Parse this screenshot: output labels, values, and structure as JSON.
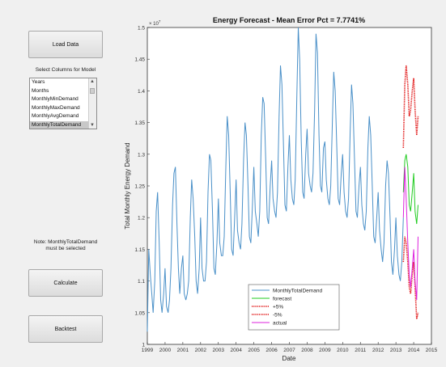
{
  "controls": {
    "load_label": "Load Data",
    "select_label": "Select Columns for Model",
    "columns": [
      "Years",
      "Months",
      "MonthlyMinDemand",
      "MonthlyMaxDemand",
      "MonthlyAvgDemand",
      "MonthlyTotalDemand"
    ],
    "selected_column": "MonthlyTotalDemand",
    "note_line1": "Note: MonthlyTotalDemand",
    "note_line2": "must be selected",
    "calculate_label": "Calculate",
    "backtest_label": "Backtest"
  },
  "chart_data": {
    "type": "line",
    "title": "Energy Forecast - Mean Error Pct = 7.7741%",
    "xlabel": "Date",
    "ylabel": "Total Monthly Energy Demand",
    "y_exponent_label": "× 10",
    "y_exponent_power": "7",
    "xlim": [
      1999,
      2015
    ],
    "ylim": [
      1.0,
      1.5
    ],
    "x_ticks": [
      "1999",
      "2000",
      "2001",
      "2002",
      "2003",
      "2004",
      "2005",
      "2006",
      "2007",
      "2008",
      "2009",
      "2010",
      "2011",
      "2012",
      "2013",
      "2014",
      "2015"
    ],
    "y_ticks": [
      "1",
      "1.05",
      "1.1",
      "1.15",
      "1.2",
      "1.25",
      "1.3",
      "1.35",
      "1.4",
      "1.45",
      "1.5"
    ],
    "legend_position": "bottom-center",
    "series": [
      {
        "name": "MonthlyTotalDemand",
        "color": "#4a90c8",
        "style": "solid",
        "x": [
          1999.0,
          1999.08,
          1999.17,
          1999.25,
          1999.33,
          1999.42,
          1999.5,
          1999.58,
          1999.67,
          1999.75,
          1999.83,
          1999.92,
          2000.0,
          2000.08,
          2000.17,
          2000.25,
          2000.33,
          2000.42,
          2000.5,
          2000.58,
          2000.67,
          2000.75,
          2000.83,
          2000.92,
          2001.0,
          2001.08,
          2001.17,
          2001.25,
          2001.33,
          2001.42,
          2001.5,
          2001.58,
          2001.67,
          2001.75,
          2001.83,
          2001.92,
          2002.0,
          2002.08,
          2002.17,
          2002.25,
          2002.33,
          2002.42,
          2002.5,
          2002.58,
          2002.67,
          2002.75,
          2002.83,
          2002.92,
          2003.0,
          2003.08,
          2003.17,
          2003.25,
          2003.33,
          2003.42,
          2003.5,
          2003.58,
          2003.67,
          2003.75,
          2003.83,
          2003.92,
          2004.0,
          2004.08,
          2004.17,
          2004.25,
          2004.33,
          2004.42,
          2004.5,
          2004.58,
          2004.67,
          2004.75,
          2004.83,
          2004.92,
          2005.0,
          2005.08,
          2005.17,
          2005.25,
          2005.33,
          2005.42,
          2005.5,
          2005.58,
          2005.67,
          2005.75,
          2005.83,
          2005.92,
          2006.0,
          2006.08,
          2006.17,
          2006.25,
          2006.33,
          2006.42,
          2006.5,
          2006.58,
          2006.67,
          2006.75,
          2006.83,
          2006.92,
          2007.0,
          2007.08,
          2007.17,
          2007.25,
          2007.33,
          2007.42,
          2007.5,
          2007.58,
          2007.67,
          2007.75,
          2007.83,
          2007.92,
          2008.0,
          2008.08,
          2008.17,
          2008.25,
          2008.33,
          2008.42,
          2008.5,
          2008.58,
          2008.67,
          2008.75,
          2008.83,
          2008.92,
          2009.0,
          2009.08,
          2009.17,
          2009.25,
          2009.33,
          2009.42,
          2009.5,
          2009.58,
          2009.67,
          2009.75,
          2009.83,
          2009.92,
          2010.0,
          2010.08,
          2010.17,
          2010.25,
          2010.33,
          2010.42,
          2010.5,
          2010.58,
          2010.67,
          2010.75,
          2010.83,
          2010.92,
          2011.0,
          2011.08,
          2011.17,
          2011.25,
          2011.33,
          2011.42,
          2011.5,
          2011.58,
          2011.67,
          2011.75,
          2011.83,
          2011.92,
          2012.0,
          2012.08,
          2012.17,
          2012.25,
          2012.33,
          2012.42,
          2012.5,
          2012.58,
          2012.67,
          2012.75,
          2012.83,
          2012.92,
          2013.0,
          2013.08,
          2013.17,
          2013.25,
          2013.33,
          2013.42
        ],
        "y": [
          1.02,
          1.15,
          1.11,
          1.08,
          1.05,
          1.1,
          1.21,
          1.24,
          1.16,
          1.07,
          1.05,
          1.08,
          1.12,
          1.06,
          1.05,
          1.07,
          1.12,
          1.22,
          1.27,
          1.28,
          1.19,
          1.12,
          1.08,
          1.12,
          1.14,
          1.08,
          1.07,
          1.08,
          1.1,
          1.2,
          1.26,
          1.23,
          1.17,
          1.1,
          1.08,
          1.12,
          1.2,
          1.12,
          1.1,
          1.1,
          1.13,
          1.24,
          1.3,
          1.29,
          1.21,
          1.12,
          1.11,
          1.16,
          1.23,
          1.16,
          1.14,
          1.14,
          1.17,
          1.28,
          1.36,
          1.33,
          1.24,
          1.15,
          1.14,
          1.2,
          1.26,
          1.18,
          1.16,
          1.15,
          1.19,
          1.29,
          1.35,
          1.33,
          1.25,
          1.17,
          1.16,
          1.22,
          1.28,
          1.21,
          1.19,
          1.17,
          1.21,
          1.33,
          1.39,
          1.38,
          1.29,
          1.2,
          1.19,
          1.25,
          1.29,
          1.23,
          1.21,
          1.2,
          1.24,
          1.36,
          1.44,
          1.41,
          1.31,
          1.22,
          1.21,
          1.28,
          1.33,
          1.26,
          1.23,
          1.22,
          1.26,
          1.39,
          1.5,
          1.45,
          1.32,
          1.24,
          1.23,
          1.3,
          1.34,
          1.27,
          1.25,
          1.24,
          1.27,
          1.37,
          1.49,
          1.46,
          1.33,
          1.25,
          1.24,
          1.31,
          1.32,
          1.26,
          1.23,
          1.22,
          1.25,
          1.35,
          1.43,
          1.4,
          1.31,
          1.23,
          1.22,
          1.27,
          1.3,
          1.24,
          1.21,
          1.2,
          1.23,
          1.33,
          1.41,
          1.38,
          1.29,
          1.21,
          1.2,
          1.25,
          1.28,
          1.22,
          1.19,
          1.18,
          1.21,
          1.31,
          1.36,
          1.33,
          1.25,
          1.17,
          1.16,
          1.2,
          1.24,
          1.18,
          1.15,
          1.13,
          1.16,
          1.25,
          1.29,
          1.27,
          1.2,
          1.13,
          1.11,
          1.15,
          1.2,
          1.14,
          1.11,
          1.1,
          1.13,
          1.2
        ]
      },
      {
        "name": "forecast",
        "color": "#22cc22",
        "style": "solid",
        "x": [
          2013.42,
          2013.5,
          2013.58,
          2013.67,
          2013.75,
          2013.83,
          2013.92,
          2014.0,
          2014.08,
          2014.17,
          2014.25
        ],
        "y": [
          1.24,
          1.29,
          1.3,
          1.28,
          1.22,
          1.21,
          1.24,
          1.27,
          1.21,
          1.19,
          1.22
        ]
      },
      {
        "name": "+5%",
        "color": "#e01010",
        "style": "dotted",
        "x": [
          2013.42,
          2013.5,
          2013.58,
          2013.67,
          2013.75,
          2013.83,
          2013.92,
          2014.0,
          2014.08,
          2014.17,
          2014.25
        ],
        "y": [
          1.31,
          1.41,
          1.44,
          1.41,
          1.36,
          1.37,
          1.4,
          1.42,
          1.37,
          1.33,
          1.36
        ]
      },
      {
        "name": "-5%",
        "color": "#e01010",
        "style": "dotted",
        "x": [
          2013.42,
          2013.5,
          2013.58,
          2013.67,
          2013.75,
          2013.83,
          2013.92,
          2014.0,
          2014.08,
          2014.17,
          2014.25
        ],
        "y": [
          1.13,
          1.17,
          1.16,
          1.13,
          1.09,
          1.08,
          1.11,
          1.13,
          1.09,
          1.04,
          1.05
        ]
      },
      {
        "name": "actual",
        "color": "#dd22dd",
        "style": "solid",
        "x": [
          2013.42,
          2013.5,
          2013.58,
          2013.67,
          2013.75,
          2013.83,
          2013.92,
          2014.0,
          2014.08,
          2014.17,
          2014.25
        ],
        "y": [
          1.2,
          1.28,
          1.23,
          1.16,
          1.11,
          1.09,
          1.12,
          1.15,
          1.1,
          1.07,
          1.17
        ]
      }
    ]
  }
}
